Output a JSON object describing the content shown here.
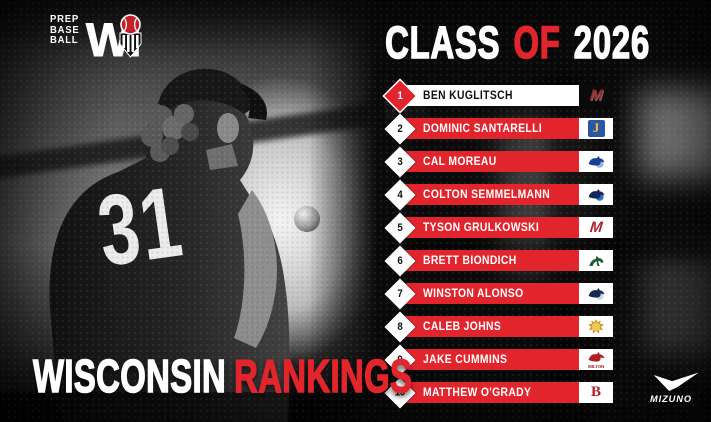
{
  "brand": {
    "lines": [
      "PREP",
      "BASE",
      "BALL"
    ],
    "state_w": "W",
    "state_i": "I"
  },
  "title": {
    "word1": "CLASS",
    "word2": "OF",
    "word3": "2026"
  },
  "photo": {
    "jersey_number": "31"
  },
  "footer": {
    "region": "WISCONSIN",
    "label": "RANKINGS"
  },
  "sponsor": {
    "name": "MIZUNO"
  },
  "colors": {
    "accent_red": "#e2252c",
    "highlight_bar": "#ffffff",
    "background": "#0a0a0a",
    "text_white": "#ffffff",
    "rank_number_dark": "#111111"
  },
  "rankings": [
    {
      "rank": "1",
      "name": "BEN KUGLITSCH",
      "highlight": true,
      "logo": {
        "name": "red-m-on-black-school-logo",
        "shape": "letter",
        "letter": "M",
        "bg": "#0b0b0b",
        "fg": "#a5242b",
        "italic": true
      }
    },
    {
      "rank": "2",
      "name": "DOMINIC SANTARELLI",
      "highlight": false,
      "logo": {
        "name": "gold-j-blue-shield-school-logo",
        "shape": "boxletter",
        "letter": "J",
        "bg": "#ffffff",
        "box": "#2a57a5",
        "fg": "#f7c62c"
      }
    },
    {
      "rank": "3",
      "name": "CAL MOREAU",
      "highlight": false,
      "logo": {
        "name": "blue-jay-school-logo",
        "shape": "bird",
        "bg": "#ffffff",
        "fg": "#1b3f94",
        "accent": "#8db9e6"
      }
    },
    {
      "rank": "4",
      "name": "COLTON SEMMELMANN",
      "highlight": false,
      "logo": {
        "name": "navy-bird-school-logo",
        "shape": "bird",
        "bg": "#ffffff",
        "fg": "#16255c",
        "accent": "#2f6fc4"
      }
    },
    {
      "rank": "5",
      "name": "TYSON GRULKOWSKI",
      "highlight": false,
      "logo": {
        "name": "red-m-school-logo",
        "shape": "letter",
        "letter": "M",
        "bg": "#ffffff",
        "fg": "#b02025",
        "italic": true
      }
    },
    {
      "rank": "6",
      "name": "BRETT BIONDICH",
      "highlight": false,
      "logo": {
        "name": "green-bronco-school-logo",
        "shape": "horse",
        "bg": "#ffffff",
        "fg": "#1d5c37"
      }
    },
    {
      "rank": "7",
      "name": "WINSTON ALONSO",
      "highlight": false,
      "logo": {
        "name": "navy-eagle-school-logo",
        "shape": "bird",
        "bg": "#ffffff",
        "fg": "#142a52",
        "accent": "#c8d4e8"
      }
    },
    {
      "rank": "8",
      "name": "CALEB JOHNS",
      "highlight": false,
      "logo": {
        "name": "gold-lion-school-logo",
        "shape": "lion",
        "bg": "#ffffff",
        "fg": "#c98f1f",
        "accent": "#eec75a"
      }
    },
    {
      "rank": "9",
      "name": "JAKE CUMMINS",
      "highlight": false,
      "logo": {
        "name": "milton-red-hawk-school-logo",
        "shape": "hawk",
        "bg": "#ffffff",
        "fg": "#b01e24",
        "caption": "MILTON"
      }
    },
    {
      "rank": "10",
      "name": "MATTHEW O'GRADY",
      "highlight": false,
      "logo": {
        "name": "red-b-school-logo",
        "shape": "letter",
        "letter": "B",
        "bg": "#ffffff",
        "fg": "#b02025",
        "serif": true
      }
    }
  ]
}
